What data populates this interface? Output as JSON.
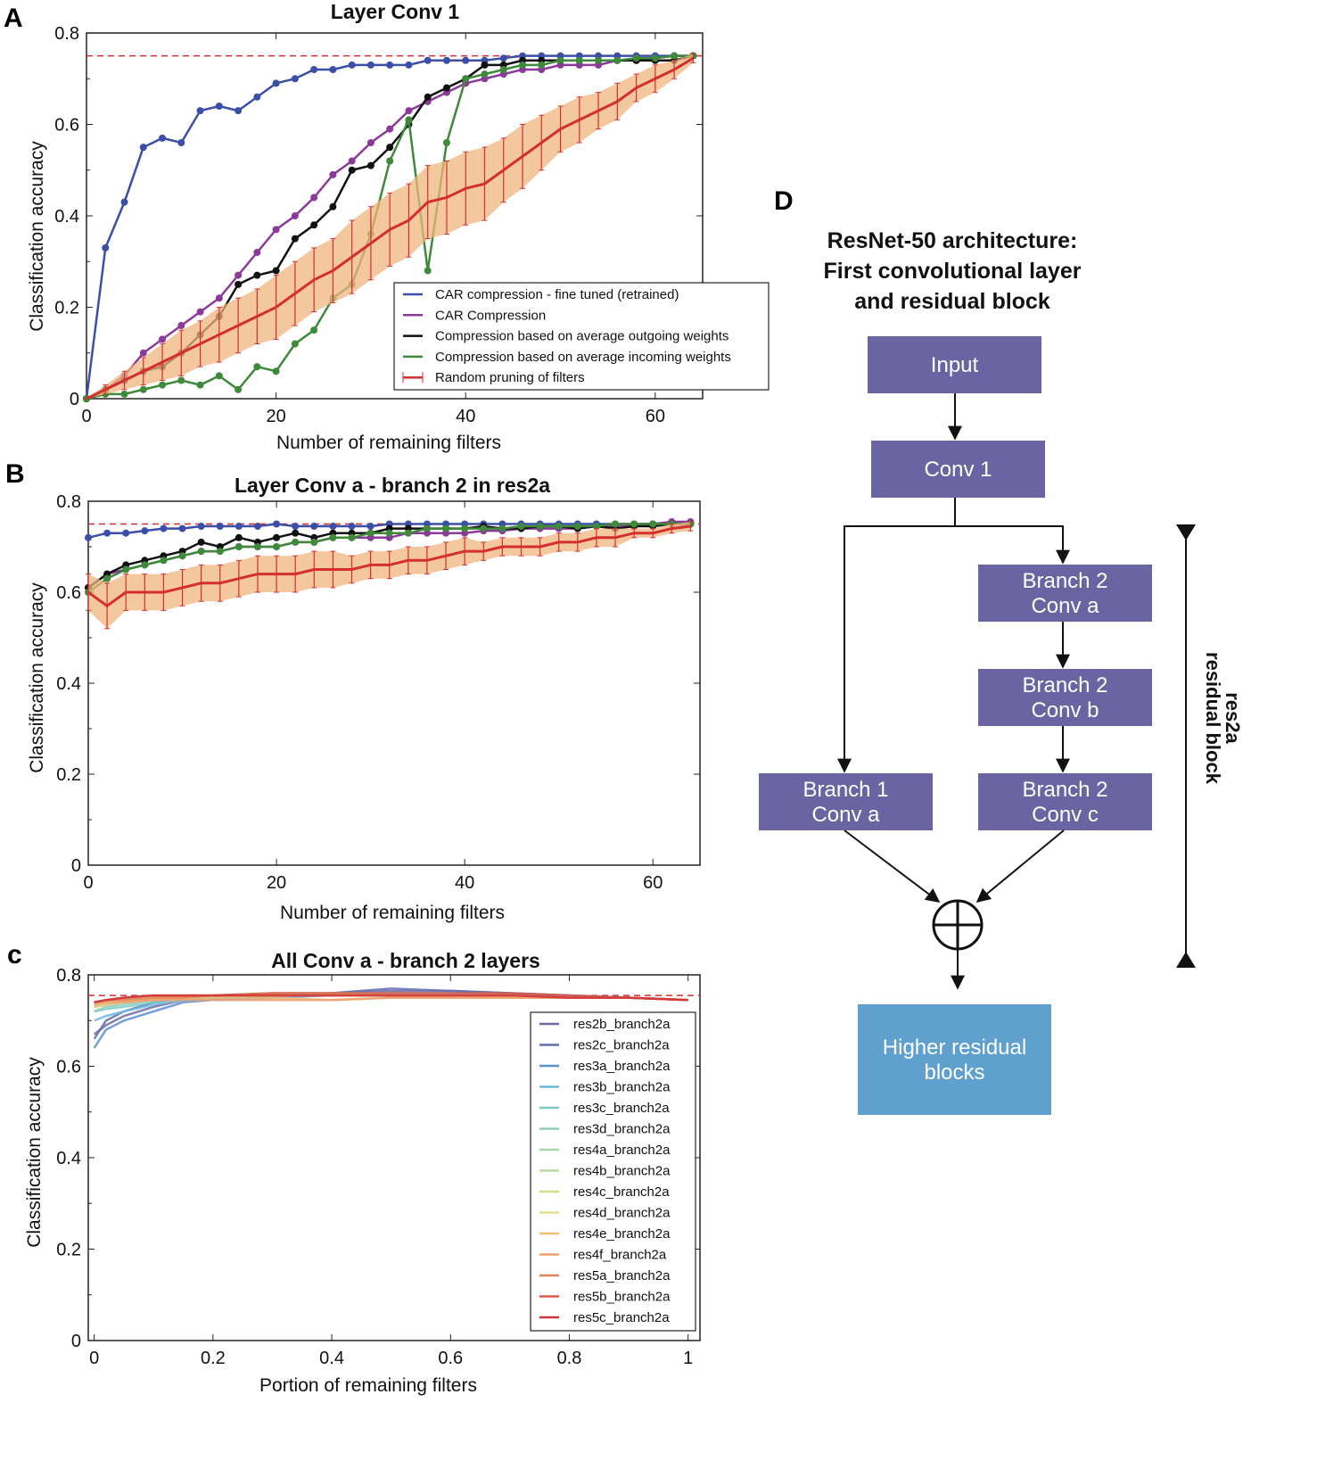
{
  "panel_labels": {
    "a": "A",
    "b": "B",
    "c": "c",
    "d": "D"
  },
  "chart_data": [
    {
      "type": "line",
      "title": "Layer Conv 1",
      "xlabel": "Number of remaining filters",
      "ylabel": "Classification accuracy",
      "xlim": [
        0,
        65
      ],
      "ylim": [
        0,
        0.8
      ],
      "xticks": [
        "0",
        "20",
        "40",
        "60"
      ],
      "xtick_values": [
        0,
        20,
        40,
        60
      ],
      "yticks": [
        "0",
        "0.2",
        "0.4",
        "0.6",
        "0.8"
      ],
      "ytick_values": [
        0,
        0.2,
        0.4,
        0.6,
        0.8
      ],
      "reference_line": 0.75,
      "legend_placement": "lower-right",
      "x": [
        0,
        2,
        4,
        6,
        8,
        10,
        12,
        14,
        16,
        18,
        20,
        22,
        24,
        26,
        28,
        30,
        32,
        34,
        36,
        38,
        40,
        42,
        44,
        46,
        48,
        50,
        52,
        54,
        56,
        58,
        60,
        62,
        64
      ],
      "series": [
        {
          "name": "CAR compression - fine tuned (retrained)",
          "color": "#3b4fa8",
          "markers": true,
          "values": [
            0,
            0.33,
            0.43,
            0.55,
            0.57,
            0.56,
            0.63,
            0.64,
            0.63,
            0.66,
            0.69,
            0.7,
            0.72,
            0.72,
            0.73,
            0.73,
            0.73,
            0.73,
            0.74,
            0.74,
            0.74,
            0.74,
            0.745,
            0.75,
            0.75,
            0.75,
            0.75,
            0.75,
            0.75,
            0.75,
            0.75,
            0.75,
            0.75
          ]
        },
        {
          "name": "CAR Compression",
          "color": "#8b3a9a",
          "markers": true,
          "values": [
            0,
            0.02,
            0.05,
            0.1,
            0.13,
            0.16,
            0.19,
            0.22,
            0.27,
            0.32,
            0.37,
            0.4,
            0.44,
            0.49,
            0.52,
            0.56,
            0.59,
            0.63,
            0.65,
            0.67,
            0.69,
            0.7,
            0.71,
            0.72,
            0.72,
            0.73,
            0.73,
            0.73,
            0.74,
            0.74,
            0.745,
            0.75,
            0.75
          ]
        },
        {
          "name": "Compression based on average outgoing weights",
          "color": "#111111",
          "markers": true,
          "values": [
            0,
            0.02,
            0.04,
            0.06,
            0.07,
            0.1,
            0.14,
            0.18,
            0.25,
            0.27,
            0.28,
            0.35,
            0.38,
            0.42,
            0.5,
            0.51,
            0.55,
            0.6,
            0.66,
            0.68,
            0.7,
            0.73,
            0.73,
            0.74,
            0.74,
            0.74,
            0.74,
            0.74,
            0.74,
            0.74,
            0.74,
            0.74,
            0.75
          ]
        },
        {
          "name": "Compression based on average incoming weights",
          "color": "#3e8a3a",
          "markers": true,
          "values": [
            0,
            0.01,
            0.01,
            0.02,
            0.03,
            0.04,
            0.03,
            0.05,
            0.02,
            0.07,
            0.06,
            0.12,
            0.15,
            0.22,
            0.25,
            0.36,
            0.52,
            0.61,
            0.28,
            0.56,
            0.7,
            0.71,
            0.72,
            0.73,
            0.73,
            0.74,
            0.74,
            0.74,
            0.74,
            0.745,
            0.745,
            0.75,
            0.75
          ]
        },
        {
          "name": "Random pruning of filters",
          "color": "#d42e2e",
          "errorbars": true,
          "values": [
            0,
            0.02,
            0.04,
            0.06,
            0.08,
            0.1,
            0.12,
            0.14,
            0.16,
            0.18,
            0.2,
            0.23,
            0.26,
            0.28,
            0.31,
            0.34,
            0.37,
            0.39,
            0.43,
            0.44,
            0.46,
            0.47,
            0.5,
            0.53,
            0.56,
            0.59,
            0.61,
            0.63,
            0.65,
            0.68,
            0.7,
            0.72,
            0.745
          ],
          "err": [
            0,
            0.01,
            0.02,
            0.03,
            0.04,
            0.05,
            0.05,
            0.06,
            0.06,
            0.06,
            0.07,
            0.07,
            0.07,
            0.07,
            0.08,
            0.08,
            0.08,
            0.08,
            0.08,
            0.08,
            0.08,
            0.08,
            0.07,
            0.07,
            0.06,
            0.05,
            0.05,
            0.04,
            0.04,
            0.03,
            0.03,
            0.02,
            0.01
          ]
        }
      ]
    },
    {
      "type": "line",
      "title": "Layer Conv a - branch 2 in res2a",
      "xlabel": "Number of remaining filters",
      "ylabel": "Classification accuracy",
      "xlim": [
        0,
        65
      ],
      "ylim": [
        0,
        0.8
      ],
      "xticks": [
        "0",
        "20",
        "40",
        "60"
      ],
      "xtick_values": [
        0,
        20,
        40,
        60
      ],
      "yticks": [
        "0",
        "0.2",
        "0.4",
        "0.6",
        "0.8"
      ],
      "ytick_values": [
        0,
        0.2,
        0.4,
        0.6,
        0.8
      ],
      "reference_line": 0.75,
      "x": [
        0,
        2,
        4,
        6,
        8,
        10,
        12,
        14,
        16,
        18,
        20,
        22,
        24,
        26,
        28,
        30,
        32,
        34,
        36,
        38,
        40,
        42,
        44,
        46,
        48,
        50,
        52,
        54,
        56,
        58,
        60,
        62,
        64
      ],
      "series": [
        {
          "name": "CAR compression - fine tuned (retrained)",
          "color": "#3b4fa8",
          "markers": true,
          "values": [
            0.72,
            0.73,
            0.73,
            0.735,
            0.74,
            0.74,
            0.745,
            0.745,
            0.745,
            0.745,
            0.75,
            0.745,
            0.745,
            0.745,
            0.745,
            0.745,
            0.75,
            0.75,
            0.75,
            0.75,
            0.75,
            0.75,
            0.75,
            0.75,
            0.75,
            0.75,
            0.75,
            0.75,
            0.75,
            0.75,
            0.75,
            0.75,
            0.75
          ]
        },
        {
          "name": "CAR Compression",
          "color": "#8b3a9a",
          "markers": true,
          "values": [
            0.61,
            0.64,
            0.65,
            0.66,
            0.67,
            0.68,
            0.69,
            0.69,
            0.7,
            0.7,
            0.7,
            0.71,
            0.71,
            0.72,
            0.72,
            0.72,
            0.72,
            0.73,
            0.73,
            0.73,
            0.73,
            0.735,
            0.735,
            0.74,
            0.74,
            0.74,
            0.74,
            0.745,
            0.745,
            0.75,
            0.75,
            0.755,
            0.755
          ]
        },
        {
          "name": "Compression based on average outgoing weights",
          "color": "#111111",
          "markers": true,
          "values": [
            0.61,
            0.64,
            0.66,
            0.67,
            0.68,
            0.69,
            0.71,
            0.7,
            0.72,
            0.71,
            0.72,
            0.73,
            0.72,
            0.73,
            0.73,
            0.73,
            0.74,
            0.74,
            0.74,
            0.74,
            0.74,
            0.745,
            0.74,
            0.74,
            0.745,
            0.745,
            0.74,
            0.745,
            0.74,
            0.745,
            0.745,
            0.75,
            0.75
          ]
        },
        {
          "name": "Compression based on average incoming weights",
          "color": "#3e8a3a",
          "markers": true,
          "values": [
            0.6,
            0.63,
            0.65,
            0.66,
            0.67,
            0.68,
            0.69,
            0.69,
            0.7,
            0.7,
            0.7,
            0.71,
            0.71,
            0.72,
            0.72,
            0.73,
            0.73,
            0.73,
            0.74,
            0.74,
            0.74,
            0.74,
            0.74,
            0.745,
            0.745,
            0.745,
            0.745,
            0.745,
            0.75,
            0.75,
            0.75,
            0.75,
            0.75
          ]
        },
        {
          "name": "Random pruning of filters",
          "color": "#d42e2e",
          "errorbars": true,
          "values": [
            0.6,
            0.57,
            0.6,
            0.6,
            0.6,
            0.61,
            0.62,
            0.62,
            0.63,
            0.64,
            0.64,
            0.64,
            0.65,
            0.65,
            0.65,
            0.66,
            0.66,
            0.67,
            0.67,
            0.68,
            0.69,
            0.69,
            0.7,
            0.7,
            0.7,
            0.71,
            0.71,
            0.72,
            0.72,
            0.73,
            0.73,
            0.74,
            0.745
          ],
          "err": [
            0.04,
            0.05,
            0.04,
            0.04,
            0.04,
            0.04,
            0.04,
            0.04,
            0.04,
            0.04,
            0.04,
            0.04,
            0.04,
            0.04,
            0.03,
            0.03,
            0.03,
            0.03,
            0.03,
            0.03,
            0.03,
            0.02,
            0.02,
            0.02,
            0.02,
            0.02,
            0.02,
            0.02,
            0.02,
            0.01,
            0.01,
            0.01,
            0.01
          ]
        }
      ]
    },
    {
      "type": "line",
      "title": "All Conv a - branch 2 layers",
      "xlabel": "Portion of remaining filters",
      "ylabel": "Classification accuracy",
      "xlim": [
        -0.01,
        1.02
      ],
      "ylim": [
        0,
        0.8
      ],
      "xticks": [
        "0",
        "0.2",
        "0.4",
        "0.6",
        "0.8",
        "1"
      ],
      "xtick_values": [
        0,
        0.2,
        0.4,
        0.6,
        0.8,
        1
      ],
      "yticks": [
        "0",
        "0.2",
        "0.4",
        "0.6",
        "0.8"
      ],
      "ytick_values": [
        0,
        0.2,
        0.4,
        0.6,
        0.8
      ],
      "reference_line": 0.755,
      "legend_placement": "lower-right",
      "x": [
        0,
        0.02,
        0.05,
        0.1,
        0.15,
        0.2,
        0.3,
        0.4,
        0.5,
        0.6,
        0.7,
        0.8,
        0.9,
        1.0
      ],
      "series": [
        {
          "name": "res2b_branch2a",
          "color": "#6f6aa8",
          "values": [
            0.67,
            0.69,
            0.71,
            0.73,
            0.745,
            0.75,
            0.755,
            0.76,
            0.765,
            0.765,
            0.76,
            0.755,
            0.75,
            0.745
          ]
        },
        {
          "name": "res2c_branch2a",
          "color": "#5f6fb0",
          "values": [
            0.66,
            0.7,
            0.72,
            0.74,
            0.75,
            0.75,
            0.755,
            0.76,
            0.77,
            0.765,
            0.76,
            0.755,
            0.75,
            0.745
          ]
        },
        {
          "name": "res3a_branch2a",
          "color": "#5b8fcf",
          "values": [
            0.64,
            0.68,
            0.7,
            0.72,
            0.74,
            0.745,
            0.75,
            0.755,
            0.76,
            0.76,
            0.755,
            0.75,
            0.75,
            0.745
          ]
        },
        {
          "name": "res3b_branch2a",
          "color": "#6ab8e0",
          "values": [
            0.7,
            0.71,
            0.72,
            0.735,
            0.745,
            0.75,
            0.755,
            0.755,
            0.76,
            0.76,
            0.755,
            0.75,
            0.75,
            0.745
          ]
        },
        {
          "name": "res3c_branch2a",
          "color": "#7ccbc8",
          "values": [
            0.72,
            0.725,
            0.73,
            0.74,
            0.745,
            0.75,
            0.755,
            0.755,
            0.755,
            0.755,
            0.75,
            0.75,
            0.75,
            0.745
          ]
        },
        {
          "name": "res3d_branch2a",
          "color": "#8ecdb6",
          "values": [
            0.72,
            0.73,
            0.735,
            0.745,
            0.75,
            0.755,
            0.76,
            0.76,
            0.76,
            0.755,
            0.755,
            0.75,
            0.75,
            0.745
          ]
        },
        {
          "name": "res4a_branch2a",
          "color": "#a5d5a8",
          "values": [
            0.73,
            0.735,
            0.74,
            0.745,
            0.75,
            0.755,
            0.755,
            0.755,
            0.755,
            0.755,
            0.75,
            0.75,
            0.75,
            0.745
          ]
        },
        {
          "name": "res4b_branch2a",
          "color": "#b8dc9a",
          "values": [
            0.735,
            0.74,
            0.745,
            0.75,
            0.75,
            0.755,
            0.755,
            0.755,
            0.755,
            0.755,
            0.75,
            0.75,
            0.75,
            0.745
          ]
        },
        {
          "name": "res4c_branch2a",
          "color": "#cfe08d",
          "values": [
            0.74,
            0.745,
            0.745,
            0.75,
            0.755,
            0.755,
            0.76,
            0.76,
            0.755,
            0.755,
            0.755,
            0.75,
            0.75,
            0.745
          ]
        },
        {
          "name": "res4d_branch2a",
          "color": "#e3de8a",
          "values": [
            0.735,
            0.74,
            0.745,
            0.75,
            0.75,
            0.755,
            0.755,
            0.755,
            0.755,
            0.755,
            0.755,
            0.75,
            0.75,
            0.745
          ]
        },
        {
          "name": "res4e_branch2a",
          "color": "#f0c070",
          "values": [
            0.73,
            0.735,
            0.74,
            0.745,
            0.75,
            0.75,
            0.75,
            0.745,
            0.75,
            0.75,
            0.75,
            0.75,
            0.75,
            0.745
          ]
        },
        {
          "name": "res4f_branch2a",
          "color": "#eea070",
          "values": [
            0.735,
            0.74,
            0.74,
            0.745,
            0.745,
            0.745,
            0.745,
            0.745,
            0.75,
            0.75,
            0.75,
            0.75,
            0.75,
            0.745
          ]
        },
        {
          "name": "res5a_branch2a",
          "color": "#e8805a",
          "values": [
            0.74,
            0.745,
            0.745,
            0.75,
            0.75,
            0.755,
            0.755,
            0.755,
            0.755,
            0.755,
            0.755,
            0.75,
            0.75,
            0.745
          ]
        },
        {
          "name": "res5b_branch2a",
          "color": "#dc5a48",
          "values": [
            0.74,
            0.745,
            0.75,
            0.755,
            0.755,
            0.755,
            0.76,
            0.76,
            0.76,
            0.76,
            0.76,
            0.755,
            0.75,
            0.745
          ]
        },
        {
          "name": "res5c_branch2a",
          "color": "#d0343a",
          "values": [
            0.74,
            0.745,
            0.75,
            0.755,
            0.755,
            0.755,
            0.755,
            0.755,
            0.755,
            0.755,
            0.755,
            0.75,
            0.75,
            0.745
          ]
        }
      ]
    }
  ],
  "diagram": {
    "title": [
      "ResNet-50 architecture:",
      "First convolutional layer",
      "and residual block"
    ],
    "boxes": {
      "input": [
        "Input"
      ],
      "conv1": [
        "Conv 1"
      ],
      "b2a": [
        "Branch 2",
        "Conv a"
      ],
      "b2b": [
        "Branch 2",
        "Conv b"
      ],
      "b2c": [
        "Branch 2",
        "Conv c"
      ],
      "b1a": [
        "Branch 1",
        "Conv a"
      ],
      "higher": [
        "Higher residual",
        "blocks"
      ]
    },
    "side_label": [
      "res2a",
      "residual block"
    ],
    "colors": {
      "block": "#6a64a2",
      "higher": "#5fa0cf"
    }
  }
}
